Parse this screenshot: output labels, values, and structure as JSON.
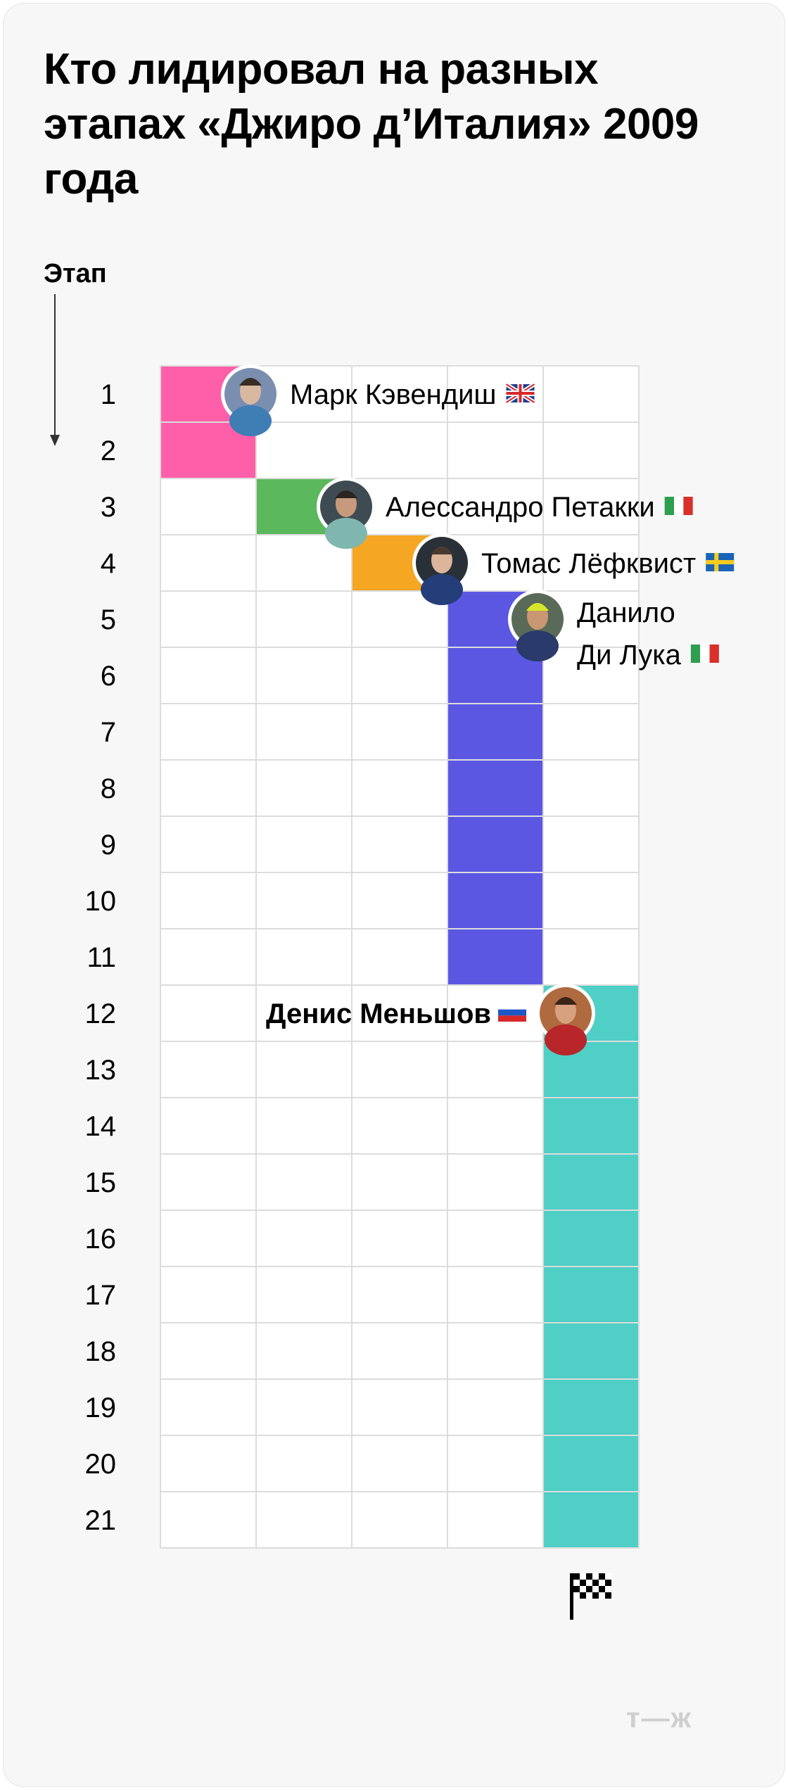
{
  "title": "Кто лидировал на разных этапах «Джиро д’Италия» 2009 года",
  "brand": "т—ж",
  "colors": {
    "grid": "#dcdcdc",
    "cell_bg": "#ffffff",
    "pink": "#ff5fa8",
    "green": "#5cb85c",
    "orange": "#f5a623",
    "purple": "#5b57e3",
    "teal": "#4fcfc6"
  },
  "chart_data": {
    "type": "table",
    "ylabel": "Этап",
    "stages": [
      1,
      2,
      3,
      4,
      5,
      6,
      7,
      8,
      9,
      10,
      11,
      12,
      13,
      14,
      15,
      16,
      17,
      18,
      19,
      20,
      21
    ],
    "leaders": [
      {
        "name": "Марк Кэвендиш",
        "flag": "gb-flag-icon",
        "color": "#ff5fa8",
        "column": 0,
        "from": 1,
        "to": 2,
        "bold": false
      },
      {
        "name": "Алессандро Петакки",
        "flag": "it-flag-icon",
        "color": "#5cb85c",
        "column": 1,
        "from": 3,
        "to": 3,
        "bold": false
      },
      {
        "name": "Томас Лёфквист",
        "flag": "se-flag-icon",
        "color": "#f5a623",
        "column": 2,
        "from": 4,
        "to": 4,
        "bold": false
      },
      {
        "name": "Данило Ди Лука",
        "name_lines": [
          "Данило",
          "Ди Лука"
        ],
        "flag": "it-flag-icon",
        "color": "#5b57e3",
        "column": 3,
        "from": 5,
        "to": 11,
        "bold": false
      },
      {
        "name": "Денис Меньшов",
        "flag": "ru-flag-icon",
        "color": "#4fcfc6",
        "column": 4,
        "from": 12,
        "to": 21,
        "bold": true
      }
    ],
    "finish_icon": "checkered-flag-icon"
  }
}
